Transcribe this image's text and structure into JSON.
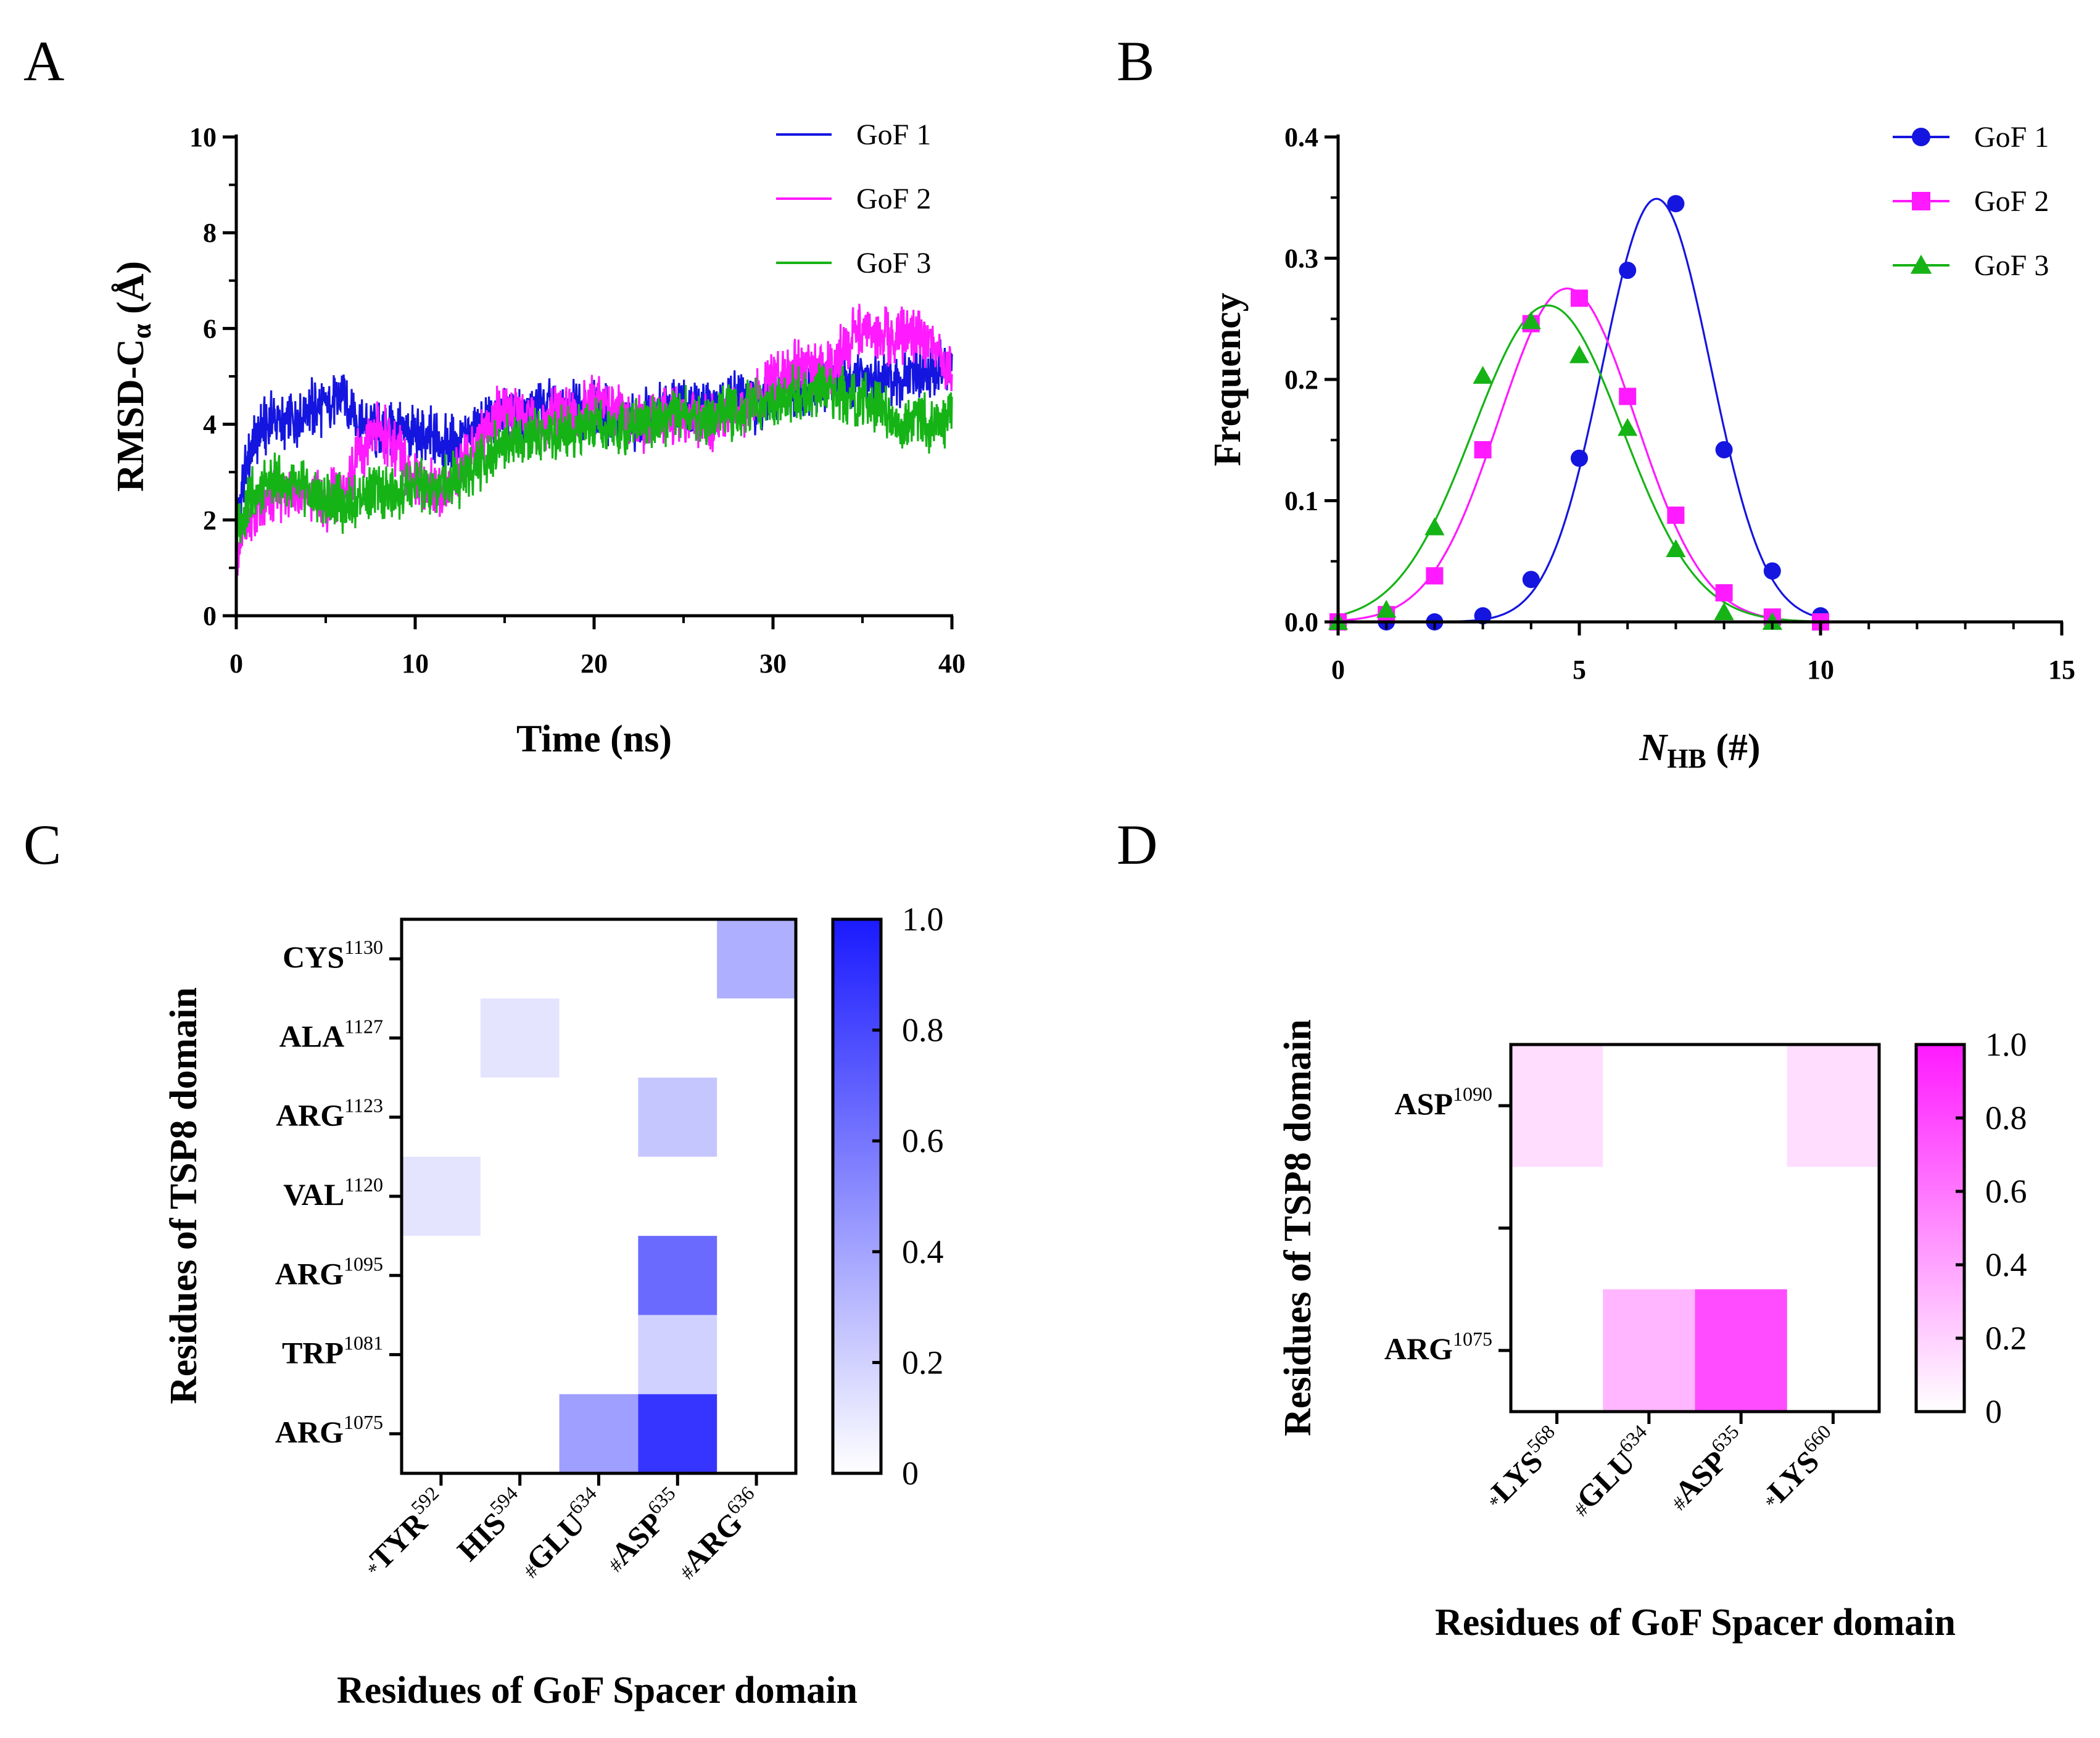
{
  "chart_data": [
    {
      "panel": "A",
      "type": "line",
      "xlabel": "Time (ns)",
      "ylabel": "RMSD-C",
      "ylabel_subscript": "α",
      "ylabel_unit": " (Å)",
      "xlim": [
        0,
        40
      ],
      "ylim": [
        0,
        10
      ],
      "xticks": [
        "0",
        "10",
        "20",
        "30",
        "40"
      ],
      "yticks": [
        "0",
        "2",
        "4",
        "6",
        "8",
        "10"
      ],
      "legend": [
        "GoF 1",
        "GoF 2",
        "GoF 3"
      ],
      "series": [
        {
          "name": "GoF 1",
          "color": "#1515e0",
          "x": [
            0,
            0.5,
            1,
            2,
            3,
            4,
            5,
            6,
            7,
            8,
            9,
            10,
            11,
            12,
            13,
            14,
            15,
            16,
            17,
            18,
            19,
            20,
            21,
            22,
            23,
            24,
            25,
            26,
            27,
            28,
            29,
            30,
            31,
            32,
            33,
            34,
            35,
            36,
            37,
            38,
            39,
            40
          ],
          "y": [
            1.8,
            3.0,
            3.7,
            4.1,
            4.0,
            4.3,
            4.4,
            4.6,
            4.0,
            3.8,
            3.9,
            3.8,
            3.7,
            3.6,
            3.8,
            4.1,
            4.3,
            4.1,
            4.4,
            4.2,
            4.3,
            4.4,
            4.1,
            4.0,
            4.2,
            4.3,
            4.5,
            4.4,
            4.3,
            4.6,
            4.4,
            4.6,
            4.8,
            4.7,
            4.8,
            4.9,
            5.0,
            4.8,
            4.9,
            5.0,
            5.1,
            5.2
          ]
        },
        {
          "name": "GoF 2",
          "color": "#ff1aff",
          "x": [
            0,
            0.5,
            1,
            2,
            3,
            4,
            5,
            6,
            7,
            8,
            9,
            10,
            11,
            12,
            13,
            14,
            15,
            16,
            17,
            18,
            19,
            20,
            21,
            22,
            23,
            24,
            25,
            26,
            27,
            28,
            29,
            30,
            31,
            32,
            33,
            34,
            35,
            36,
            37,
            38,
            39,
            40
          ],
          "y": [
            1.0,
            1.8,
            2.1,
            2.5,
            2.6,
            2.5,
            2.3,
            2.6,
            3.4,
            4.0,
            3.4,
            2.9,
            2.6,
            2.7,
            3.4,
            3.9,
            4.3,
            4.2,
            4.0,
            4.3,
            4.1,
            4.6,
            4.3,
            4.1,
            4.0,
            4.2,
            4.2,
            4.0,
            4.1,
            4.3,
            4.5,
            4.9,
            5.2,
            5.2,
            5.0,
            5.6,
            6.0,
            5.9,
            5.8,
            5.9,
            5.6,
            5.0
          ]
        },
        {
          "name": "GoF 3",
          "color": "#16b316",
          "x": [
            0,
            0.5,
            1,
            2,
            3,
            4,
            5,
            6,
            7,
            8,
            9,
            10,
            11,
            12,
            13,
            14,
            15,
            16,
            17,
            18,
            19,
            20,
            21,
            22,
            23,
            24,
            25,
            26,
            27,
            28,
            29,
            30,
            31,
            32,
            33,
            34,
            35,
            36,
            37,
            38,
            39,
            40
          ],
          "y": [
            1.6,
            2.3,
            2.6,
            2.8,
            2.7,
            2.6,
            2.4,
            2.3,
            2.5,
            2.6,
            2.5,
            2.7,
            2.6,
            2.8,
            3.0,
            3.3,
            3.6,
            3.7,
            3.8,
            3.9,
            3.8,
            3.9,
            3.9,
            4.0,
            4.1,
            4.2,
            4.2,
            4.1,
            4.2,
            4.3,
            4.4,
            4.5,
            4.6,
            4.6,
            4.7,
            4.6,
            4.5,
            4.3,
            4.0,
            4.1,
            4.0,
            4.1
          ]
        }
      ]
    },
    {
      "panel": "B",
      "type": "scatter",
      "xlabel_main": "N",
      "xlabel_sub": "HB",
      "xlabel_unit": " (#)",
      "ylabel": "Frequency",
      "xlim": [
        0,
        15
      ],
      "ylim": [
        0,
        0.4
      ],
      "xticks": [
        "0",
        "5",
        "10",
        "15"
      ],
      "yticks": [
        "0.0",
        "0.1",
        "0.2",
        "0.3",
        "0.4"
      ],
      "legend": [
        "GoF 1",
        "GoF 2",
        "GoF 3"
      ],
      "series": [
        {
          "name": "GoF 1",
          "color": "#1515e0",
          "marker": "circle",
          "x": [
            0,
            1,
            2,
            3,
            4,
            5,
            6,
            7,
            8,
            9,
            10
          ],
          "y": [
            0.0,
            0.0,
            0.0,
            0.005,
            0.035,
            0.135,
            0.29,
            0.345,
            0.142,
            0.042,
            0.005
          ],
          "fit": {
            "amplitude": 0.349,
            "mean": 6.6,
            "sd": 1.12
          }
        },
        {
          "name": "GoF 2",
          "color": "#ff1aff",
          "marker": "square",
          "x": [
            0,
            1,
            2,
            3,
            4,
            5,
            6,
            7,
            8,
            9,
            10
          ],
          "y": [
            0.0,
            0.006,
            0.038,
            0.142,
            0.246,
            0.267,
            0.186,
            0.088,
            0.024,
            0.004,
            0.0
          ],
          "fit": {
            "amplitude": 0.275,
            "mean": 4.75,
            "sd": 1.42
          }
        },
        {
          "name": "GoF 3",
          "color": "#16b316",
          "marker": "triangle",
          "x": [
            0,
            1,
            2,
            3,
            4,
            5,
            6,
            7,
            8,
            9
          ],
          "y": [
            0.0,
            0.01,
            0.078,
            0.203,
            0.248,
            0.22,
            0.16,
            0.06,
            0.008,
            0.0
          ],
          "fit": {
            "amplitude": 0.261,
            "mean": 4.35,
            "sd": 1.55
          }
        }
      ]
    },
    {
      "panel": "C",
      "type": "heatmap",
      "xlabel": "Residues of GoF Spacer domain",
      "ylabel": "Residues of TSP8 domain",
      "color": "#1a1aff",
      "x_residues": [
        {
          "prefix": "*",
          "name": "TYR",
          "num": "592"
        },
        {
          "prefix": "",
          "name": "HIS",
          "num": "594"
        },
        {
          "prefix": "#",
          "name": "GLU",
          "num": "634"
        },
        {
          "prefix": "#",
          "name": "ASP",
          "num": "635"
        },
        {
          "prefix": "#",
          "name": "ARG",
          "num": "636"
        }
      ],
      "y_residues": [
        {
          "name": "CYS",
          "num": "1130"
        },
        {
          "name": "ALA",
          "num": "1127"
        },
        {
          "name": "ARG",
          "num": "1123"
        },
        {
          "name": "VAL",
          "num": "1120"
        },
        {
          "name": "ARG",
          "num": "1095"
        },
        {
          "name": "TRP",
          "num": "1081"
        },
        {
          "name": "ARG",
          "num": "1075"
        }
      ],
      "values": [
        [
          0,
          0,
          0,
          0,
          0.35
        ],
        [
          0,
          0.12,
          0,
          0,
          0
        ],
        [
          0,
          0,
          0,
          0.25,
          0
        ],
        [
          0.12,
          0,
          0,
          0,
          0
        ],
        [
          0,
          0,
          0,
          0.65,
          0
        ],
        [
          0,
          0,
          0,
          0.2,
          0
        ],
        [
          0,
          0,
          0.42,
          0.88,
          0
        ]
      ],
      "colorbar_ticks": [
        "0",
        "0.2",
        "0.4",
        "0.6",
        "0.8",
        "1.0"
      ]
    },
    {
      "panel": "D",
      "type": "heatmap",
      "xlabel": "Residues of GoF Spacer domain",
      "ylabel": "Residues of TSP8 domain",
      "color": "#ff1aff",
      "x_residues": [
        {
          "prefix": "*",
          "name": "LYS",
          "num": "568"
        },
        {
          "prefix": "#",
          "name": "GLU",
          "num": "634"
        },
        {
          "prefix": "#",
          "name": "ASP",
          "num": "635"
        },
        {
          "prefix": "*",
          "name": "LYS",
          "num": "660"
        }
      ],
      "y_residues": [
        {
          "name": "ASP",
          "num": "1090"
        },
        {
          "name": "",
          "num": ""
        },
        {
          "name": "ARG",
          "num": "1075"
        }
      ],
      "values": [
        [
          0.15,
          0,
          0,
          0.15
        ],
        [
          0,
          0,
          0,
          0
        ],
        [
          0,
          0.32,
          0.78,
          0
        ]
      ],
      "colorbar_ticks": [
        "0",
        "0.2",
        "0.4",
        "0.6",
        "0.8",
        "1.0"
      ]
    }
  ]
}
